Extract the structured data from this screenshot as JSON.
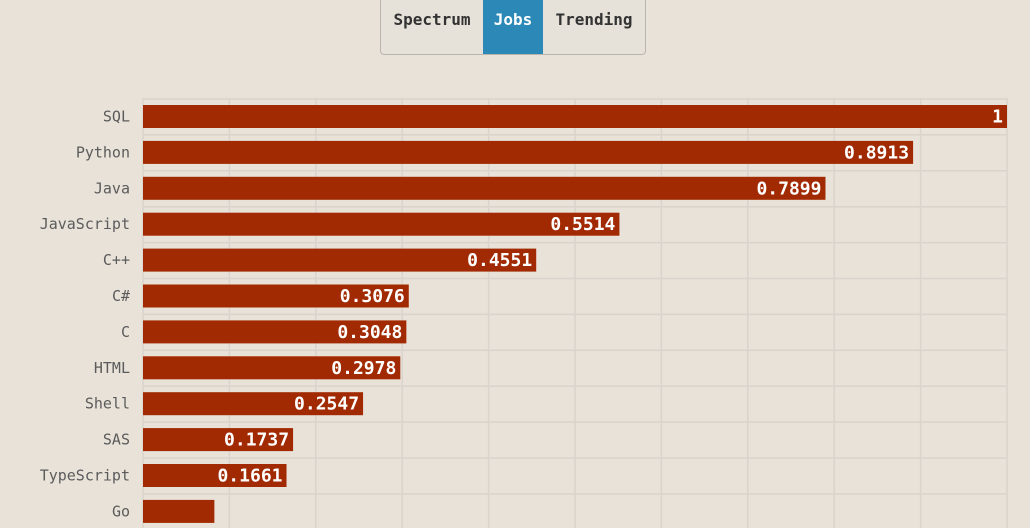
{
  "tabs": [
    {
      "label": "Spectrum",
      "active": false
    },
    {
      "label": "Jobs",
      "active": true
    },
    {
      "label": "Trending",
      "active": false
    }
  ],
  "colors": {
    "bar": "#a22a02",
    "background": "#e8e2d9",
    "grid": "#d9d4cc",
    "active_tab": "#2b88b7"
  },
  "chart_data": {
    "type": "bar",
    "orientation": "horizontal",
    "categories": [
      "SQL",
      "Python",
      "Java",
      "JavaScript",
      "C++",
      "C#",
      "C",
      "HTML",
      "Shell",
      "SAS",
      "TypeScript",
      "Go"
    ],
    "values": [
      1,
      0.8913,
      0.7899,
      0.5514,
      0.4551,
      0.3076,
      0.3048,
      0.2978,
      0.2547,
      0.1737,
      0.1661,
      0.0826
    ],
    "value_labels": [
      "1",
      "0.8913",
      "0.7899",
      "0.5514",
      "0.4551",
      "0.3076",
      "0.3048",
      "0.2978",
      "0.2547",
      "0.1737",
      "0.1661",
      ""
    ],
    "xlim": [
      0,
      1
    ],
    "grid": true
  }
}
